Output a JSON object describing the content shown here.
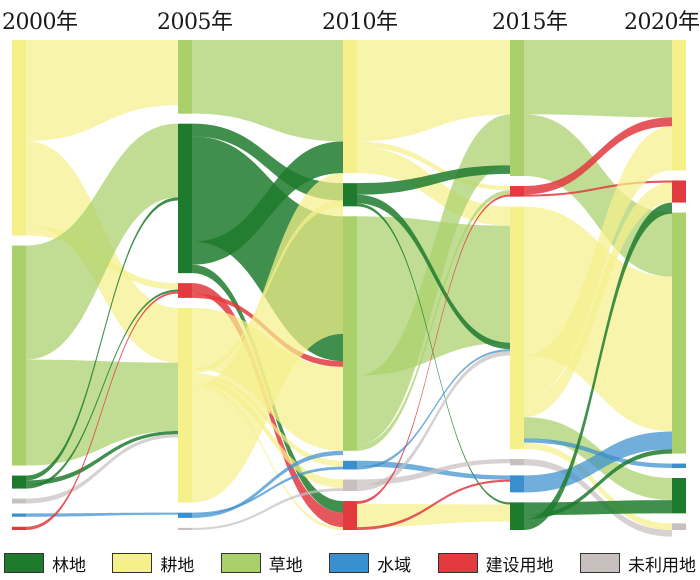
{
  "years": [
    "2000年",
    "2005年",
    "2010年",
    "2015年",
    "2020年"
  ],
  "categories": [
    {
      "key": "forest",
      "label": "林地",
      "color": "#1e7b2e"
    },
    {
      "key": "cropland",
      "label": "耕地",
      "color": "#f5f08a"
    },
    {
      "key": "grassland",
      "label": "草地",
      "color": "#a9d06b"
    },
    {
      "key": "water",
      "label": "水域",
      "color": "#3a8fcf"
    },
    {
      "key": "construction",
      "label": "建设用地",
      "color": "#e23a3f"
    },
    {
      "key": "unused",
      "label": "未利用地",
      "color": "#c8bfbf"
    }
  ],
  "stage_order": [
    "cropland",
    "grassland",
    "forest",
    "unused",
    "water",
    "construction"
  ],
  "stage_order_mid": [
    "grassland",
    "forest",
    "construction",
    "cropland",
    "water",
    "unused"
  ],
  "stage_order_2010": [
    "cropland",
    "forest",
    "grassland",
    "water",
    "unused",
    "construction"
  ],
  "stage_order_2015": [
    "grassland",
    "construction",
    "cropland",
    "unused",
    "water",
    "forest"
  ],
  "stage_order_2020": [
    "cropland",
    "construction",
    "grassland",
    "water",
    "forest",
    "unused"
  ],
  "nodes": [
    [
      {
        "cat": "cropland",
        "value": 120
      },
      {
        "cat": "grassland",
        "value": 135
      },
      {
        "cat": "forest",
        "value": 8
      },
      {
        "cat": "unused",
        "value": 3
      },
      {
        "cat": "water",
        "value": 2
      },
      {
        "cat": "construction",
        "value": 2
      }
    ],
    [
      {
        "cat": "grassland",
        "value": 70
      },
      {
        "cat": "forest",
        "value": 142
      },
      {
        "cat": "construction",
        "value": 14
      },
      {
        "cat": "cropland",
        "value": 185
      },
      {
        "cat": "water",
        "value": 5
      },
      {
        "cat": "unused",
        "value": 2
      }
    ],
    [
      {
        "cat": "cropland",
        "value": 92
      },
      {
        "cat": "grassland",
        "value": 162
      },
      {
        "cat": "forest",
        "value": 16
      },
      {
        "cat": "water",
        "value": 6
      },
      {
        "cat": "unused",
        "value": 8
      },
      {
        "cat": "construction",
        "value": 20
      }
    ],
    [
      {
        "cat": "grassland",
        "value": 128
      },
      {
        "cat": "construction",
        "value": 10
      },
      {
        "cat": "cropland",
        "value": 228
      },
      {
        "cat": "unused",
        "value": 6
      },
      {
        "cat": "water",
        "value": 16
      },
      {
        "cat": "forest",
        "value": 26
      }
    ],
    [
      {
        "cat": "cropland",
        "value": 118
      },
      {
        "cat": "grassland",
        "value": 218
      },
      {
        "cat": "forest",
        "value": 32
      },
      {
        "cat": "unused",
        "value": 6
      },
      {
        "cat": "water",
        "value": 4
      },
      {
        "cat": "construction",
        "value": 20
      }
    ]
  ],
  "flows": [
    [
      {
        "from": "cropland",
        "to": "grassland",
        "value": 62,
        "color": "cropland"
      },
      {
        "from": "cropland",
        "to": "cropland",
        "value": 52,
        "color": "cropland"
      },
      {
        "from": "cropland",
        "to": "construction",
        "value": 6,
        "color": "cropland"
      },
      {
        "from": "grassland",
        "to": "forest",
        "value": 70,
        "color": "grassland"
      },
      {
        "from": "grassland",
        "to": "cropland",
        "value": 65,
        "color": "grassland"
      },
      {
        "from": "forest",
        "to": "forest",
        "value": 3,
        "color": "forest"
      },
      {
        "from": "forest",
        "to": "cropland",
        "value": 3,
        "color": "forest"
      },
      {
        "from": "forest",
        "to": "construction",
        "value": 2,
        "color": "forest"
      },
      {
        "from": "unused",
        "to": "cropland",
        "value": 3,
        "color": "unused"
      },
      {
        "from": "water",
        "to": "water",
        "value": 2,
        "color": "water"
      },
      {
        "from": "construction",
        "to": "construction",
        "value": 2,
        "color": "construction"
      }
    ],
    [
      {
        "from": "grassland",
        "to": "cropland",
        "value": 70,
        "color": "grassland"
      },
      {
        "from": "forest",
        "to": "forest",
        "value": 12,
        "color": "forest"
      },
      {
        "from": "forest",
        "to": "grassland",
        "value": 100,
        "color": "forest"
      },
      {
        "from": "forest",
        "to": "cropland",
        "value": 22,
        "color": "forest"
      },
      {
        "from": "forest",
        "to": "construction",
        "value": 8,
        "color": "forest"
      },
      {
        "from": "construction",
        "to": "construction",
        "value": 10,
        "color": "construction"
      },
      {
        "from": "construction",
        "to": "grassland",
        "value": 4,
        "color": "construction"
      },
      {
        "from": "cropland",
        "to": "grassland",
        "value": 58,
        "color": "cropland"
      },
      {
        "from": "cropland",
        "to": "forest",
        "value": 4,
        "color": "cropland"
      },
      {
        "from": "cropland",
        "to": "water",
        "value": 4,
        "color": "cropland"
      },
      {
        "from": "cropland",
        "to": "unused",
        "value": 6,
        "color": "cropland"
      },
      {
        "from": "cropland",
        "to": "construction",
        "value": 2,
        "color": "cropland"
      },
      {
        "from": "cropland",
        "to": "cropland",
        "value": 111,
        "color": "cropland"
      },
      {
        "from": "water",
        "to": "water",
        "value": 2,
        "color": "water"
      },
      {
        "from": "water",
        "to": "grassland",
        "value": 3,
        "color": "water"
      },
      {
        "from": "unused",
        "to": "unused",
        "value": 2,
        "color": "unused"
      }
    ],
    [
      {
        "from": "cropland",
        "to": "grassland",
        "value": 70,
        "color": "cropland"
      },
      {
        "from": "cropland",
        "to": "construction",
        "value": 4,
        "color": "cropland"
      },
      {
        "from": "cropland",
        "to": "cropland",
        "value": 18,
        "color": "cropland"
      },
      {
        "from": "grassland",
        "to": "cropland",
        "value": 110,
        "color": "grassland"
      },
      {
        "from": "grassland",
        "to": "grassland",
        "value": 48,
        "color": "grassland"
      },
      {
        "from": "grassland",
        "to": "construction",
        "value": 4,
        "color": "grassland"
      },
      {
        "from": "forest",
        "to": "grassland",
        "value": 8,
        "color": "forest"
      },
      {
        "from": "forest",
        "to": "cropland",
        "value": 6,
        "color": "forest"
      },
      {
        "from": "forest",
        "to": "forest",
        "value": 2,
        "color": "forest"
      },
      {
        "from": "water",
        "to": "water",
        "value": 4,
        "color": "water"
      },
      {
        "from": "water",
        "to": "cropland",
        "value": 2,
        "color": "water"
      },
      {
        "from": "unused",
        "to": "unused",
        "value": 4,
        "color": "unused"
      },
      {
        "from": "unused",
        "to": "cropland",
        "value": 4,
        "color": "unused"
      },
      {
        "from": "construction",
        "to": "construction",
        "value": 2,
        "color": "construction"
      },
      {
        "from": "construction",
        "to": "forest",
        "value": 16,
        "color": "cropland"
      },
      {
        "from": "construction",
        "to": "water",
        "value": 2,
        "color": "construction"
      }
    ],
    [
      {
        "from": "grassland",
        "to": "cropland",
        "value": 70,
        "color": "grassland"
      },
      {
        "from": "grassland",
        "to": "grassland",
        "value": 58,
        "color": "grassland"
      },
      {
        "from": "construction",
        "to": "cropland",
        "value": 8,
        "color": "construction"
      },
      {
        "from": "construction",
        "to": "construction",
        "value": 2,
        "color": "construction"
      },
      {
        "from": "cropland",
        "to": "grassland",
        "value": 140,
        "color": "cropland"
      },
      {
        "from": "cropland",
        "to": "cropland",
        "value": 40,
        "color": "cropland"
      },
      {
        "from": "cropland",
        "to": "construction",
        "value": 18,
        "color": "cropland"
      },
      {
        "from": "cropland",
        "to": "forest",
        "value": 20,
        "color": "grassland"
      },
      {
        "from": "cropland",
        "to": "water",
        "value": 4,
        "color": "water"
      },
      {
        "from": "cropland",
        "to": "unused",
        "value": 6,
        "color": "cropland"
      },
      {
        "from": "unused",
        "to": "unused",
        "value": 6,
        "color": "unused"
      },
      {
        "from": "water",
        "to": "grassland",
        "value": 16,
        "color": "water"
      },
      {
        "from": "forest",
        "to": "forest",
        "value": 12,
        "color": "forest"
      },
      {
        "from": "forest",
        "to": "grassland",
        "value": 4,
        "color": "forest"
      },
      {
        "from": "forest",
        "to": "construction",
        "value": 10,
        "color": "forest"
      }
    ]
  ]
}
